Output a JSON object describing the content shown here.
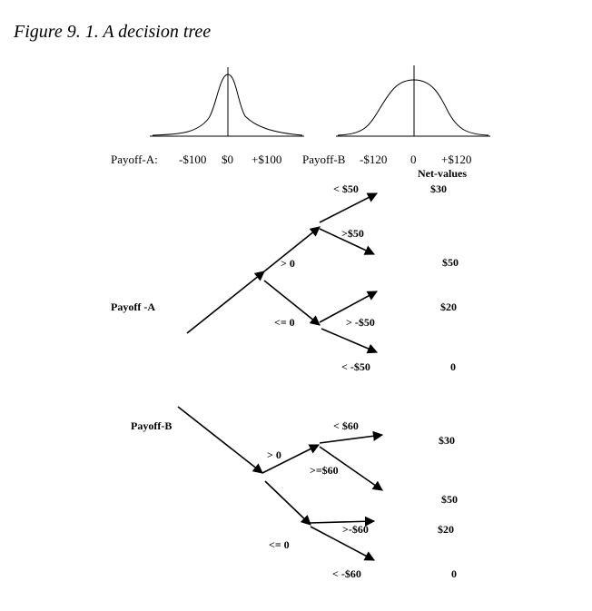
{
  "title": "Figure 9. 1. A decision tree",
  "distributions": {
    "a_axis": [
      "Payoff-A:",
      "-$100",
      "$0",
      "+$100"
    ],
    "b_axis": [
      "Payoff-B",
      "-$120",
      "0",
      "+$120"
    ]
  },
  "net_values_header": "Net-values",
  "tree_a": {
    "root": "Payoff -A",
    "branch_pos": "> 0",
    "branch_neg": "<= 0",
    "pos_children": [
      "< $50",
      ">$50"
    ],
    "neg_children": [
      "> -$50",
      "< -$50"
    ],
    "net_values": [
      "$30",
      "$50",
      "$20",
      "0"
    ]
  },
  "tree_b": {
    "root": "Payoff-B",
    "branch_pos": "> 0",
    "branch_neg": "<= 0",
    "pos_children": [
      "< $60",
      ">=$60"
    ],
    "neg_children": [
      ">-$60",
      "< -$60"
    ],
    "net_values": [
      "$30",
      "$50",
      "$20",
      "0"
    ]
  }
}
